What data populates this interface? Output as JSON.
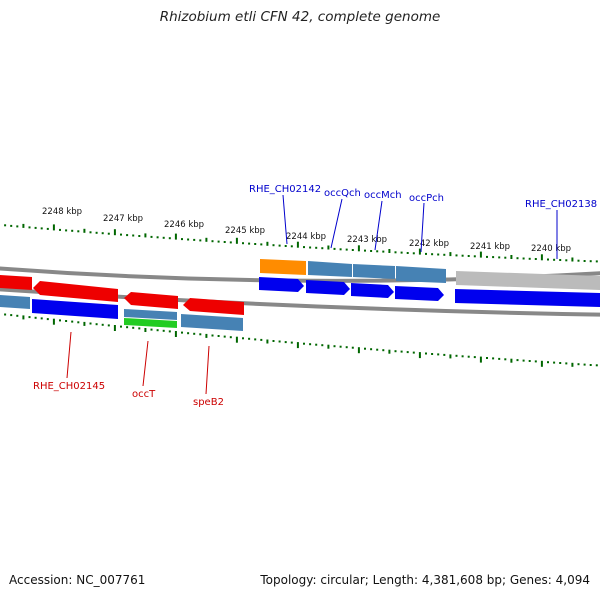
{
  "header": {
    "title": "Rhizobium etli CFN 42, complete genome"
  },
  "footer": {
    "accession": "Accession: NC_007761",
    "summary": "Topology: circular; Length: 4,381,608 bp; Genes: 4,094"
  },
  "scale_labels": [
    "2248 kbp",
    "2247 kbp",
    "2246 kbp",
    "2245 kbp",
    "2244 kbp",
    "2243 kbp",
    "2242 kbp",
    "2241 kbp",
    "2240 kbp"
  ],
  "gene_labels_top": [
    "RHE_CH02142",
    "occQch",
    "occMch",
    "occPch",
    "RHE_CH02138"
  ],
  "gene_labels_bottom": [
    "RHE_CH02145",
    "occT",
    "speB2"
  ],
  "colors": {
    "label_blue": "#0000cc",
    "label_red": "#cc0000",
    "tick_green": "#006600",
    "cds_red": "#ee0000",
    "cds_blue": "#0000ee",
    "cds_steel": "#4682b4",
    "cds_orange": "#ff8c00",
    "cds_green": "#22cc22",
    "cds_gray": "#bbbbbb"
  }
}
